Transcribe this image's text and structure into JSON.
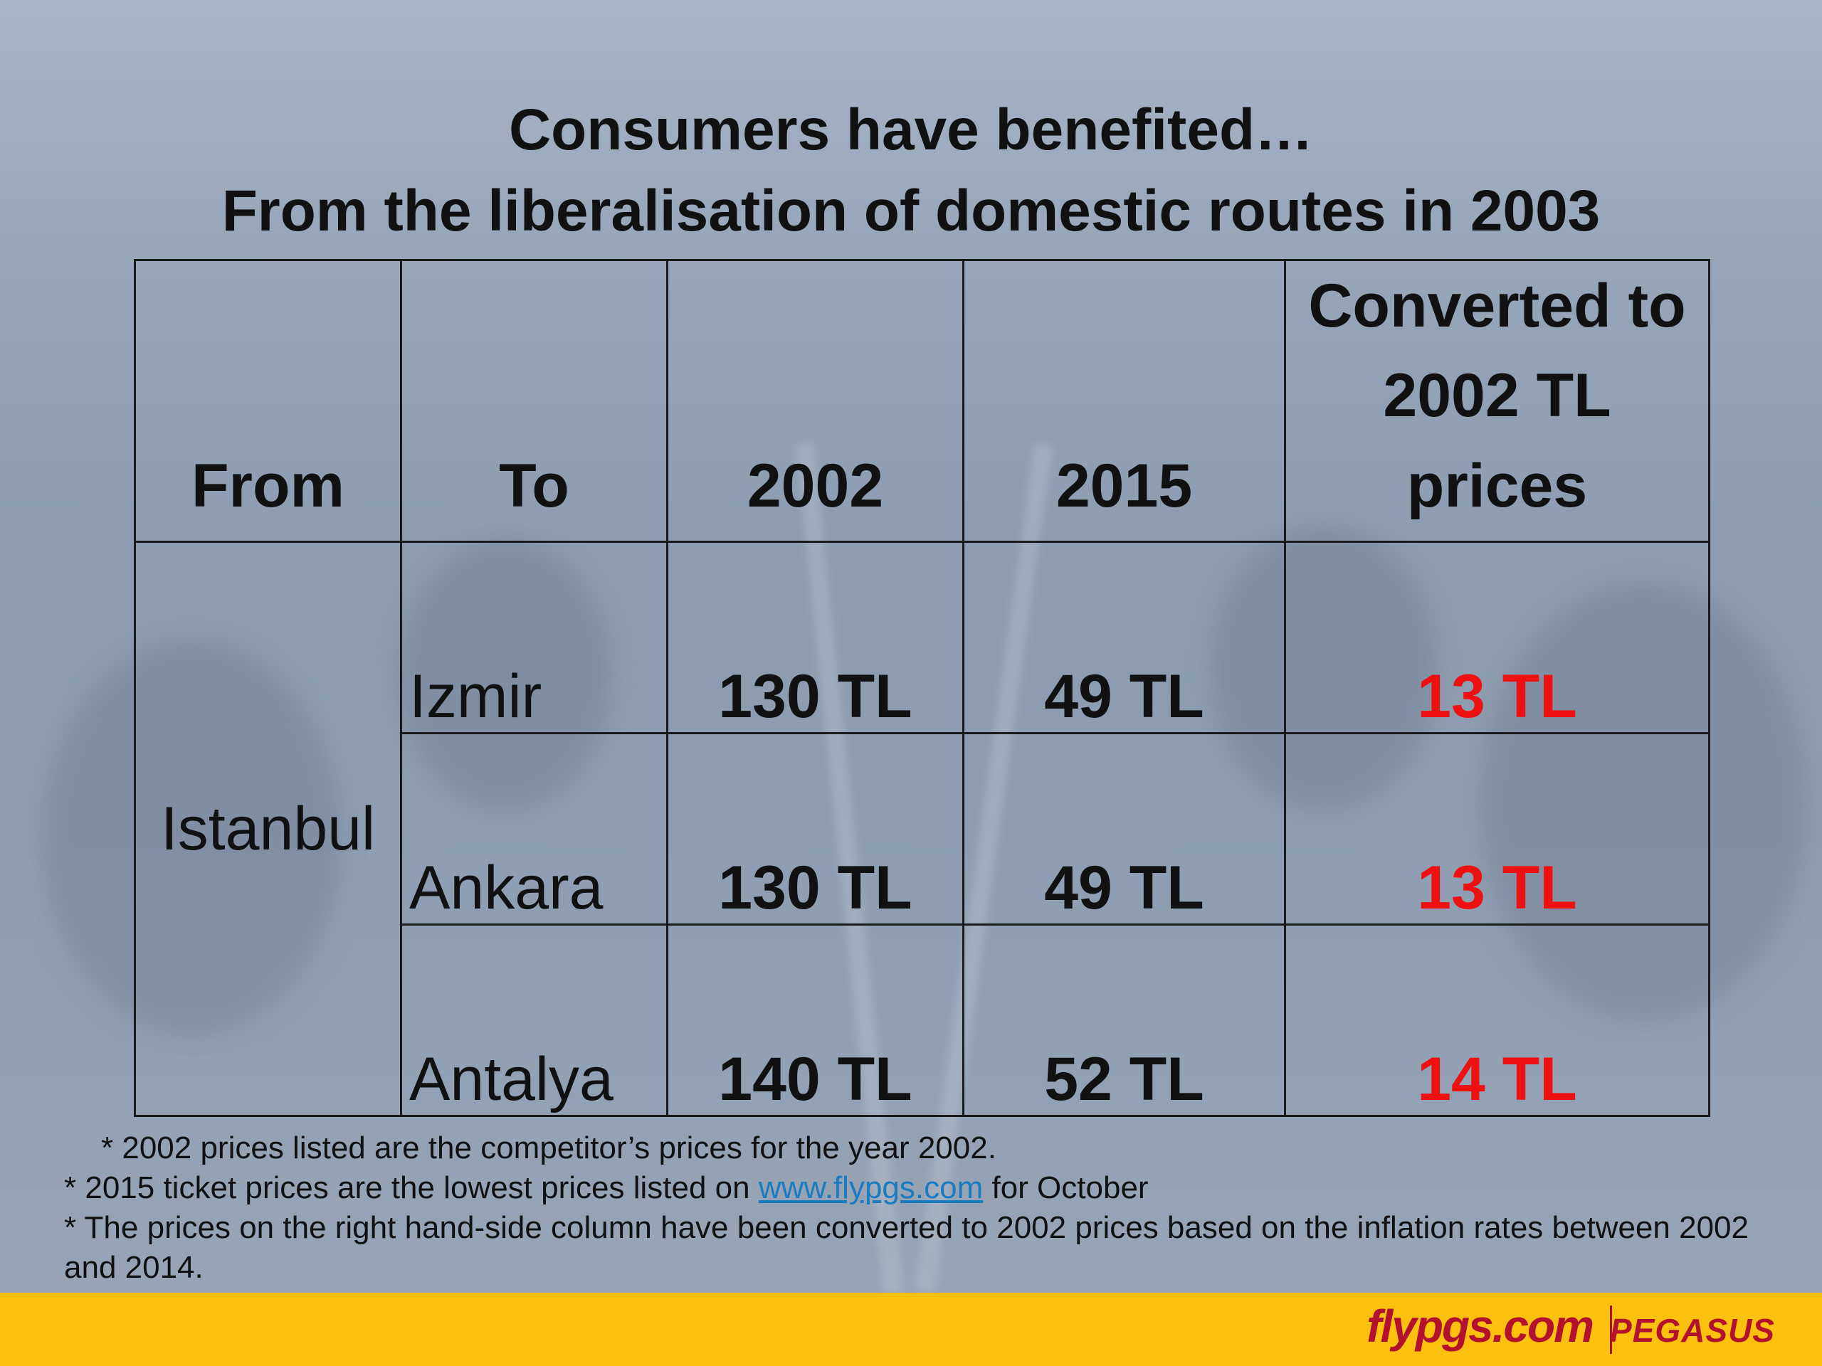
{
  "slide": {
    "title_line_1": "Consumers have benefited…",
    "title_line_2": "From the liberalisation of domestic routes in 2003"
  },
  "table": {
    "headers": {
      "from": "From",
      "to": "To",
      "price_2002": "2002",
      "price_2015": "2015",
      "converted": "Converted to 2002 TL prices"
    },
    "from_city": "Istanbul",
    "rows": [
      {
        "to": "Izmir",
        "price_2002": "130 TL",
        "price_2015": "49 TL",
        "converted": "13 TL"
      },
      {
        "to": "Ankara",
        "price_2002": "130 TL",
        "price_2015": "49 TL",
        "converted": "13 TL"
      },
      {
        "to": "Antalya",
        "price_2002": "140 TL",
        "price_2015": "52 TL",
        "converted": "14 TL"
      }
    ]
  },
  "notes": {
    "note_1": "* 2002 prices listed are the competitor’s prices for the year 2002.",
    "note_2_prefix": "* 2015 ticket prices are the lowest prices listed on ",
    "note_2_link": "www.flypgs.com",
    "note_2_suffix": " for October",
    "note_3": "* The prices on the right hand-side column  have been converted to 2002 prices based on the inflation rates between 2002",
    "note_4": "and 2014."
  },
  "footer": {
    "site_logo_text": "flypgs.com",
    "brand_logo_text": "PEGASUS",
    "bar_color": "#fcc10f",
    "brand_color": "#b3122e"
  },
  "colors": {
    "converted_price": "#ee1111",
    "link": "#1a7bbf"
  }
}
